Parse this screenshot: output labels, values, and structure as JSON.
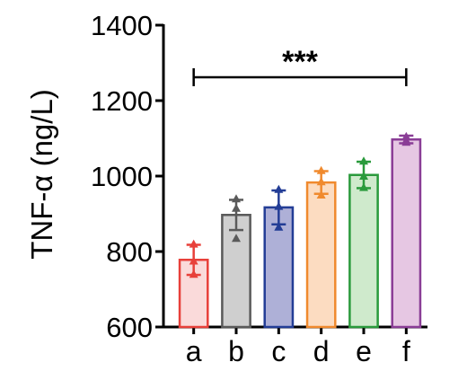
{
  "chart_data": {
    "type": "bar",
    "ylabel": "TNF-α (ng/L)",
    "xlabel": "",
    "title": "",
    "ylim": [
      600,
      1400
    ],
    "yticks": [
      600,
      800,
      1000,
      1200,
      1400
    ],
    "ytick_labels": [
      "600",
      "800",
      "1000",
      "1200",
      "1400"
    ],
    "categories": [
      "a",
      "b",
      "c",
      "d",
      "e",
      "f"
    ],
    "values": [
      778,
      897,
      917,
      983,
      1003,
      1097
    ],
    "error": [
      40,
      40,
      45,
      30,
      35,
      10
    ],
    "points": [
      [
        820,
        775,
        740
      ],
      [
        940,
        915,
        835
      ],
      [
        965,
        920,
        865
      ],
      [
        1015,
        985,
        950
      ],
      [
        1040,
        1000,
        970
      ],
      [
        1105,
        1095,
        1090
      ]
    ],
    "colors": {
      "stroke": [
        "#e8403a",
        "#5a5a5a",
        "#233d96",
        "#f08a2e",
        "#2a9a3c",
        "#8a3d96"
      ],
      "fill": [
        "#fadada",
        "#cfcfcf",
        "#aeb0d7",
        "#fcdcc1",
        "#cfeacc",
        "#e6c7e3"
      ]
    },
    "significance": {
      "label": "***",
      "from": "a",
      "to": "f",
      "y": 1262
    },
    "grid": false,
    "legend": "none"
  }
}
